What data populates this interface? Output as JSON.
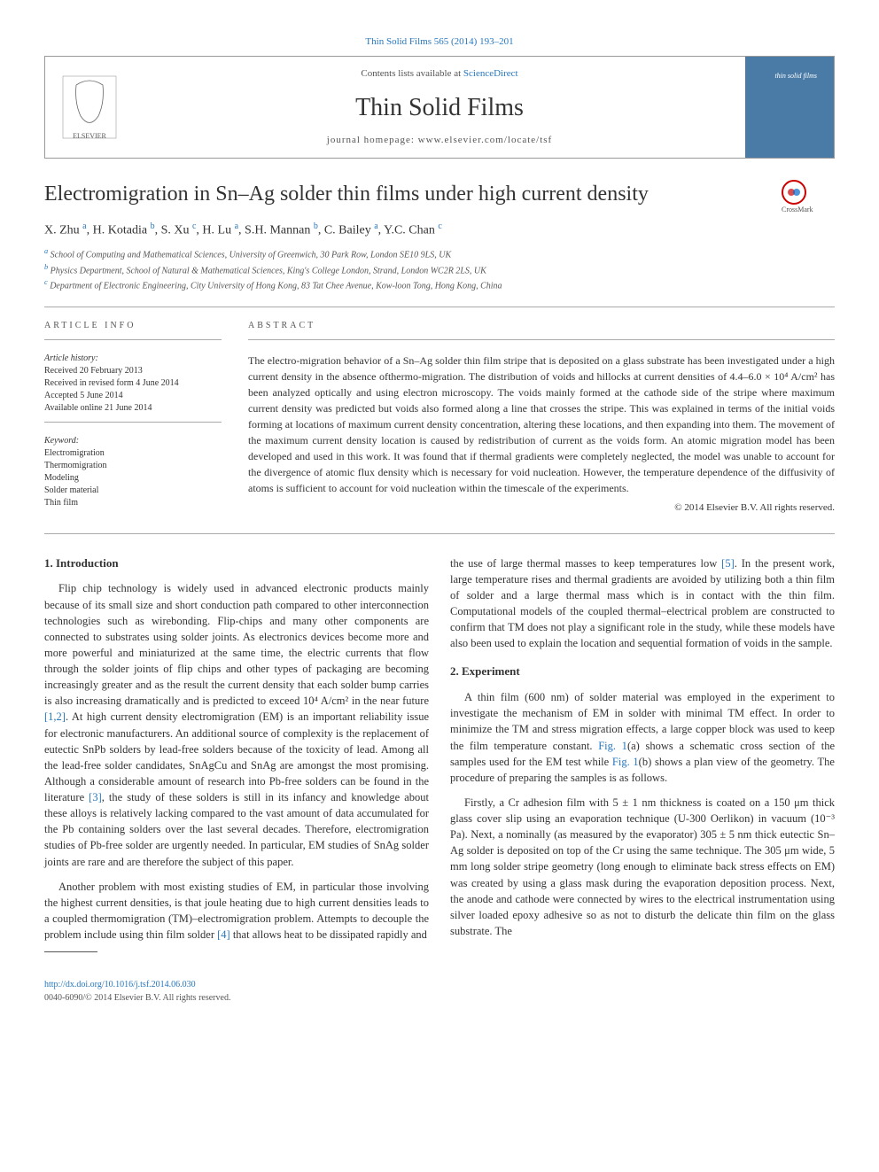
{
  "top_link": "Thin Solid Films 565 (2014) 193–201",
  "header": {
    "contents_line_prefix": "Contents lists available at ",
    "contents_link": "ScienceDirect",
    "journal_name": "Thin Solid Films",
    "homepage_label": "journal homepage: www.elsevier.com/locate/tsf",
    "cover_text": "thin solid films"
  },
  "title": "Electromigration in Sn–Ag solder thin films under high current density",
  "crossmark_label": "CrossMark",
  "authors_html": "X. Zhu <sup>a</sup>, H. Kotadia <sup>b</sup>, S. Xu <sup>c</sup>, H. Lu <sup>a</sup>, S.H. Mannan <sup>b</sup>, C. Bailey <sup>a</sup>, Y.C. Chan <sup>c</sup>",
  "affiliations": [
    {
      "sup": "a",
      "text": "School of Computing and Mathematical Sciences, University of Greenwich, 30 Park Row, London SE10 9LS, UK"
    },
    {
      "sup": "b",
      "text": "Physics Department, School of Natural & Mathematical Sciences, King's College London, Strand, London WC2R 2LS, UK"
    },
    {
      "sup": "c",
      "text": "Department of Electronic Engineering, City University of Hong Kong, 83 Tat Chee Avenue, Kow-loon Tong, Hong Kong, China"
    }
  ],
  "info": {
    "heading": "article info",
    "history_label": "Article history:",
    "history": [
      "Received 20 February 2013",
      "Received in revised form 4 June 2014",
      "Accepted 5 June 2014",
      "Available online 21 June 2014"
    ],
    "keyword_label": "Keyword:",
    "keywords": [
      "Electromigration",
      "Thermomigration",
      "Modeling",
      "Solder material",
      "Thin film"
    ]
  },
  "abstract": {
    "heading": "abstract",
    "text": "The electro-migration behavior of a Sn–Ag solder thin film stripe that is deposited on a glass substrate has been investigated under a high current density in the absence ofthermo-migration. The distribution of voids and hillocks at current densities of 4.4–6.0 × 10⁴ A/cm² has been analyzed optically and using electron microscopy. The voids mainly formed at the cathode side of the stripe where maximum current density was predicted but voids also formed along a line that crosses the stripe. This was explained in terms of the initial voids forming at locations of maximum current density concentration, altering these locations, and then expanding into them. The movement of the maximum current density location is caused by redistribution of current as the voids form. An atomic migration model has been developed and used in this work. It was found that if thermal gradients were completely neglected, the model was unable to account for the divergence of atomic flux density which is necessary for void nucleation. However, the temperature dependence of the diffusivity of atoms is sufficient to account for void nucleation within the timescale of the experiments.",
    "copyright": "© 2014 Elsevier B.V. All rights reserved."
  },
  "sections": {
    "intro_heading": "1. Introduction",
    "intro_p1": "Flip chip technology is widely used in advanced electronic products mainly because of its small size and short conduction path compared to other interconnection technologies such as wirebonding. Flip-chips and many other components are connected to substrates using solder joints. As electronics devices become more and more powerful and miniaturized at the same time, the electric currents that flow through the solder joints of flip chips and other types of packaging are becoming increasingly greater and as the result the current density that each solder bump carries is also increasing dramatically and is predicted to exceed 10⁴ A/cm² in the near future ",
    "intro_ref1": "[1,2]",
    "intro_p1b": ". At high current density electromigration (EM) is an important reliability issue for electronic manufacturers. An additional source of complexity is the replacement of eutectic SnPb solders by lead-free solders because of the toxicity of lead. Among all the lead-free solder candidates, SnAgCu and SnAg are amongst the most promising. Although a considerable amount of research into Pb-free solders can be found in the literature ",
    "intro_ref2": "[3]",
    "intro_p1c": ", the study of these solders is still in its infancy and knowledge about these alloys is relatively lacking compared to the vast amount of data accumulated for the Pb containing solders over the last several decades. Therefore, electromigration studies of Pb-free solder are urgently needed. In particular, EM studies of SnAg solder joints are rare and are therefore the subject of this paper.",
    "intro_p2": "Another problem with most existing studies of EM, in particular those involving the highest current densities, is that joule heating due to high current densities leads to a coupled thermomigration (TM)–electromigration problem. Attempts to decouple the problem include using thin film solder ",
    "intro_ref3": "[4]",
    "intro_p2b": " that allows heat to be dissipated rapidly and",
    "right_p1a": "the use of large thermal masses to keep temperatures low ",
    "right_ref1": "[5]",
    "right_p1b": ". In the present work, large temperature rises and thermal gradients are avoided by utilizing both a thin film of solder and a large thermal mass which is in contact with the thin film. Computational models of the coupled thermal–electrical problem are constructed to confirm that TM does not play a significant role in the study, while these models have also been used to explain the location and sequential formation of voids in the sample.",
    "exp_heading": "2. Experiment",
    "exp_p1a": "A thin film (600 nm) of solder material was employed in the experiment to investigate the mechanism of EM in solder with minimal TM effect. In order to minimize the TM and stress migration effects, a large copper block was used to keep the film temperature constant. ",
    "exp_fig1a": "Fig. 1",
    "exp_p1b": "(a) shows a schematic cross section of the samples used for the EM test while ",
    "exp_fig1b": "Fig. 1",
    "exp_p1c": "(b) shows a plan view of the geometry. The procedure of preparing the samples is as follows.",
    "exp_p2": "Firstly, a Cr adhesion film with 5 ± 1 nm thickness is coated on a 150 μm thick glass cover slip using an evaporation technique (U-300 Oerlikon) in vacuum (10⁻³ Pa). Next, a nominally (as measured by the evaporator) 305 ± 5 nm thick eutectic Sn–Ag solder is deposited on top of the Cr using the same technique. The 305 μm wide, 5 mm long solder stripe geometry (long enough to eliminate back stress effects on EM) was created by using a glass mask during the evaporation deposition process. Next, the anode and cathode were connected by wires to the electrical instrumentation using silver loaded epoxy adhesive so as not to disturb the delicate thin film on the glass substrate. The"
  },
  "footer": {
    "doi": "http://dx.doi.org/10.1016/j.tsf.2014.06.030",
    "copyright": "0040-6090/© 2014 Elsevier B.V. All rights reserved."
  },
  "colors": {
    "link": "#2878bd",
    "text": "#333333",
    "muted": "#555555",
    "border": "#999999",
    "cover_bg": "#4a7ba6",
    "crossmark_red": "#cc0000"
  },
  "typography": {
    "body_fontsize": 13,
    "title_fontsize": 24,
    "journal_fontsize": 28,
    "abstract_fontsize": 12,
    "affil_fontsize": 10,
    "footer_fontsize": 10
  }
}
